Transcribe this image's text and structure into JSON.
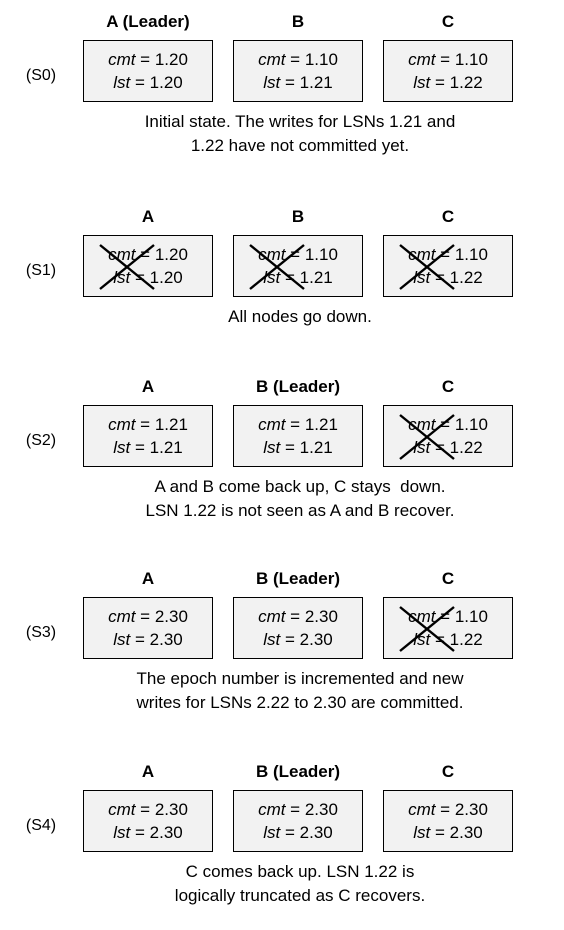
{
  "stages": [
    {
      "label": "(S0)",
      "nodes": [
        {
          "name": "A (Leader)",
          "cmt": "1.20",
          "lst": "1.20",
          "down": false
        },
        {
          "name": "B",
          "cmt": "1.10",
          "lst": "1.21",
          "down": false
        },
        {
          "name": "C",
          "cmt": "1.10",
          "lst": "1.22",
          "down": false
        }
      ],
      "caption_lines": [
        "Initial state. The writes for LSNs 1.21 and",
        "1.22 have not committed yet."
      ]
    },
    {
      "label": "(S1)",
      "nodes": [
        {
          "name": "A",
          "cmt": "1.20",
          "lst": "1.20",
          "down": true
        },
        {
          "name": "B",
          "cmt": "1.10",
          "lst": "1.21",
          "down": true
        },
        {
          "name": "C",
          "cmt": "1.10",
          "lst": "1.22",
          "down": true
        }
      ],
      "caption_lines": [
        "All nodes go down."
      ]
    },
    {
      "label": "(S2)",
      "nodes": [
        {
          "name": "A",
          "cmt": "1.21",
          "lst": "1.21",
          "down": false
        },
        {
          "name": "B (Leader)",
          "cmt": "1.21",
          "lst": "1.21",
          "down": false
        },
        {
          "name": "C",
          "cmt": "1.10",
          "lst": "1.22",
          "down": true
        }
      ],
      "caption_lines": [
        "A and B come back up, C stays  down.",
        "LSN 1.22 is not seen as A and B recover."
      ]
    },
    {
      "label": "(S3)",
      "nodes": [
        {
          "name": "A",
          "cmt": "2.30",
          "lst": "2.30",
          "down": false
        },
        {
          "name": "B (Leader)",
          "cmt": "2.30",
          "lst": "2.30",
          "down": false
        },
        {
          "name": "C",
          "cmt": "1.10",
          "lst": "1.22",
          "down": true
        }
      ],
      "caption_lines": [
        "The epoch number is incremented and new",
        "writes for LSNs 2.22 to 2.30 are committed."
      ]
    },
    {
      "label": "(S4)",
      "nodes": [
        {
          "name": "A",
          "cmt": "2.30",
          "lst": "2.30",
          "down": false
        },
        {
          "name": "B (Leader)",
          "cmt": "2.30",
          "lst": "2.30",
          "down": false
        },
        {
          "name": "C",
          "cmt": "2.30",
          "lst": "2.30",
          "down": false
        }
      ],
      "caption_lines": [
        "C comes back up. LSN 1.22 is",
        "logically truncated as C recovers."
      ]
    }
  ],
  "labels": {
    "cmt_key": "cmt",
    "lst_key": "lst",
    "equals": " = "
  }
}
